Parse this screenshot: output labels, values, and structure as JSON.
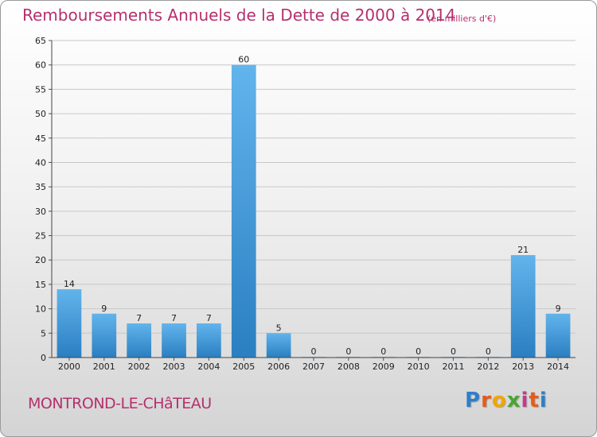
{
  "colors": {
    "title": "#b5306e",
    "bar_light": "#62b4ec",
    "bar_dark": "#2a7fc1",
    "grid": "#c8c8c8",
    "axis_text": "#222222"
  },
  "header": {
    "title": "Remboursements Annuels de la Dette de 2000 à 2014",
    "subtitle": "(en milliers d'€)"
  },
  "footer": {
    "commune": "MONTROND-LE-CHâTEAU",
    "logo": [
      "P",
      "r",
      "o",
      "x",
      "i",
      "t",
      "i"
    ],
    "logo_colors": [
      "#2f7fc8",
      "#e65b1c",
      "#f2a600",
      "#4aa632",
      "#c23b8c",
      "#e65b1c",
      "#2f7fc8"
    ]
  },
  "chart_data": {
    "type": "bar",
    "categories": [
      "2000",
      "2001",
      "2002",
      "2003",
      "2004",
      "2005",
      "2006",
      "2007",
      "2008",
      "2009",
      "2010",
      "2011",
      "2012",
      "2013",
      "2014"
    ],
    "values": [
      14,
      9,
      7,
      7,
      7,
      60,
      5,
      0,
      0,
      0,
      0,
      0,
      0,
      21,
      9
    ],
    "title": "Remboursements Annuels de la Dette de 2000 à 2014",
    "ylim": [
      0,
      65
    ],
    "yticks": [
      0,
      5,
      10,
      15,
      20,
      25,
      30,
      35,
      40,
      45,
      50,
      55,
      60,
      65
    ],
    "grid": true
  }
}
